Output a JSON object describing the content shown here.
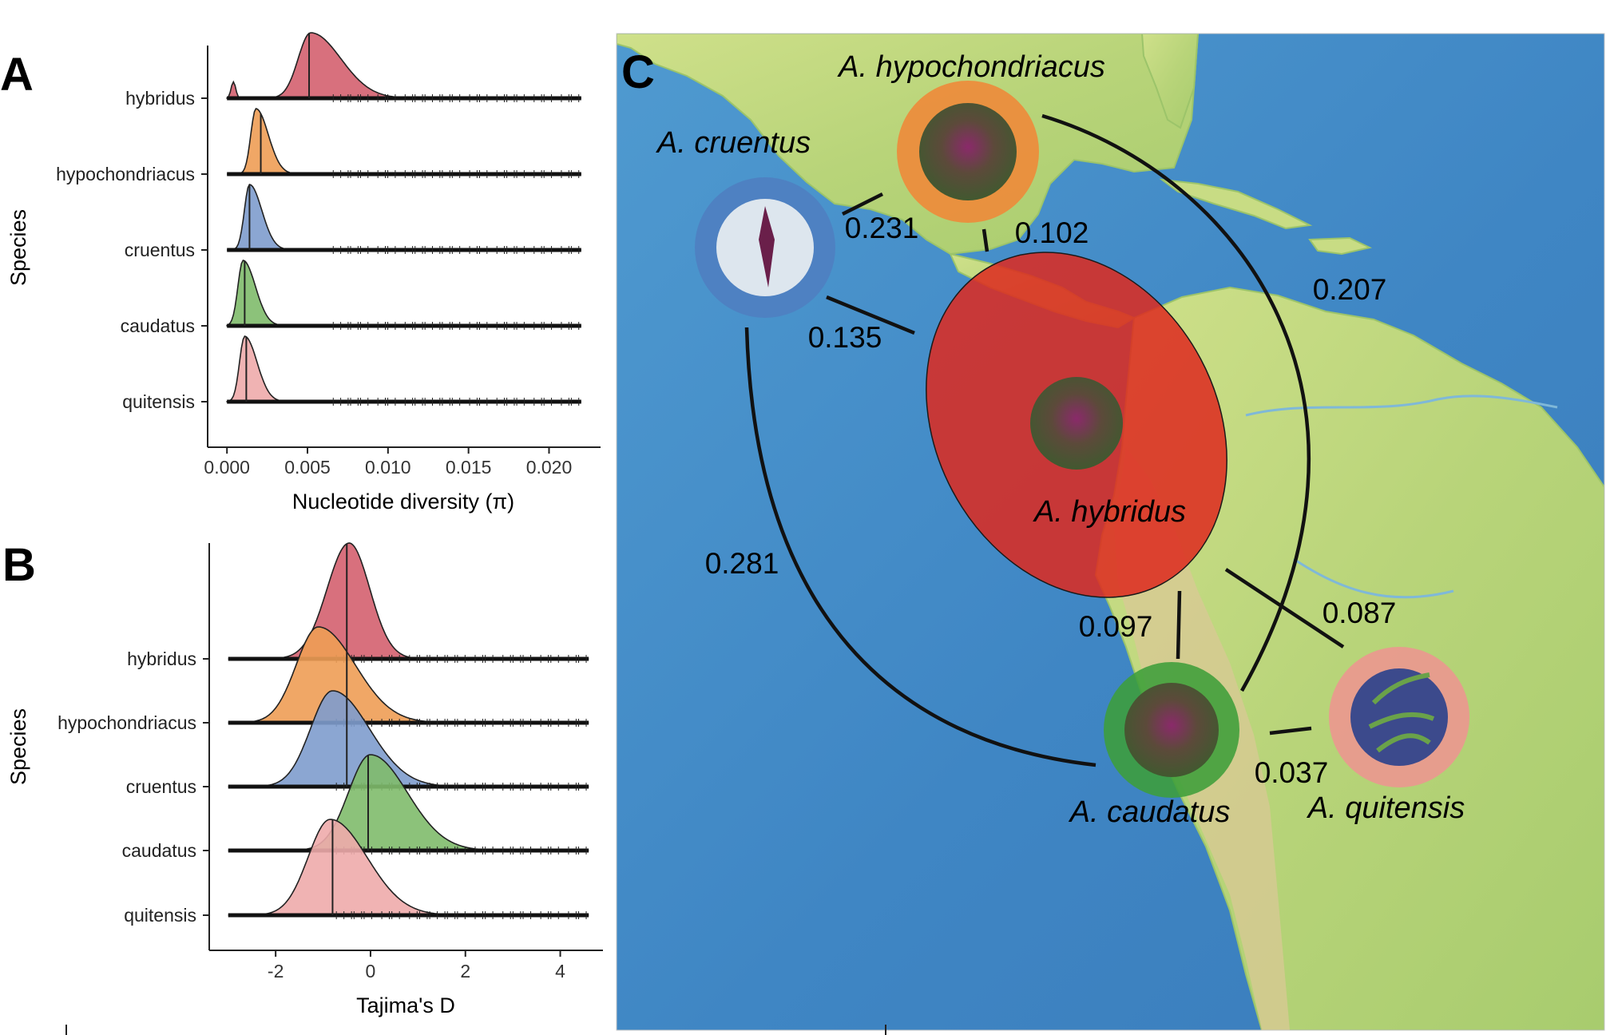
{
  "panels": {
    "a": {
      "letter": "A"
    },
    "b": {
      "letter": "B"
    },
    "c": {
      "letter": "C"
    }
  },
  "chart_data": [
    {
      "type": "ridgeline",
      "panel": "A",
      "xlabel": "Nucleotide diversity (π)",
      "ylabel": "Species",
      "xlim": [
        -0.0012,
        0.0232
      ],
      "xticks": [
        0.0,
        0.005,
        0.01,
        0.015,
        0.02
      ],
      "xtick_labels": [
        "0.000",
        "0.005",
        "0.010",
        "0.015",
        "0.020"
      ],
      "grid": false,
      "series": [
        {
          "name": "hybridus",
          "color": "#d4606f",
          "median": 0.0051,
          "peak_x": 0.0052,
          "data_range": [
            0.0,
            0.022
          ]
        },
        {
          "name": "hypochondriacus",
          "color": "#ee9d55",
          "median": 0.0021,
          "peak_x": 0.0018,
          "data_range": [
            0.0,
            0.022
          ]
        },
        {
          "name": "cruentus",
          "color": "#7e9ccd",
          "median": 0.0014,
          "peak_x": 0.0014,
          "data_range": [
            0.0,
            0.022
          ]
        },
        {
          "name": "caudatus",
          "color": "#80bb6c",
          "median": 0.0011,
          "peak_x": 0.001,
          "data_range": [
            0.0,
            0.022
          ]
        },
        {
          "name": "quitensis",
          "color": "#eeabab",
          "median": 0.0012,
          "peak_x": 0.0011,
          "data_range": [
            0.0,
            0.022
          ]
        }
      ]
    },
    {
      "type": "ridgeline",
      "panel": "B",
      "xlabel": "Tajima's D",
      "ylabel": "Species",
      "xlim": [
        -3.4,
        4.9
      ],
      "xticks": [
        -2,
        0,
        2,
        4
      ],
      "xtick_labels": [
        "-2",
        "0",
        "2",
        "4"
      ],
      "grid": false,
      "series": [
        {
          "name": "hybridus",
          "color": "#d4606f",
          "median": -0.5,
          "peak_x": -0.45,
          "data_range": [
            -3.0,
            4.6
          ]
        },
        {
          "name": "hypochondriacus",
          "color": "#ee9d55",
          "median": -0.5,
          "peak_x": -1.1,
          "data_range": [
            -3.0,
            4.6
          ]
        },
        {
          "name": "cruentus",
          "color": "#7e9ccd",
          "median": -0.5,
          "peak_x": -0.8,
          "data_range": [
            -3.0,
            4.6
          ]
        },
        {
          "name": "caudatus",
          "color": "#80bb6c",
          "median": -0.05,
          "peak_x": 0.0,
          "data_range": [
            -3.0,
            4.6
          ]
        },
        {
          "name": "quitensis",
          "color": "#eeabab",
          "median": -0.8,
          "peak_x": -0.85,
          "data_range": [
            -3.0,
            4.6
          ]
        }
      ]
    }
  ],
  "map": {
    "species": [
      {
        "name": "A. hypochondriacus",
        "ring_color": "#ee8a3a",
        "photo": "flower-photo"
      },
      {
        "name": "A. cruentus",
        "ring_color": "#4f7ec0",
        "photo": "flower-photo"
      },
      {
        "name": "A. hybridus",
        "ring_color": "#dd2a20",
        "photo": "flower-photo"
      },
      {
        "name": "A. caudatus",
        "ring_color": "#3d9e3a",
        "photo": "flower-photo"
      },
      {
        "name": "A. quitensis",
        "ring_color": "#e99a8e",
        "photo": "flower-photo"
      }
    ],
    "connections": [
      {
        "from": "A. cruentus",
        "to": "A. hypochondriacus",
        "value": "0.231"
      },
      {
        "from": "A. hypochondriacus",
        "to": "A. hybridus",
        "value": "0.102"
      },
      {
        "from": "A. hypochondriacus",
        "to": "A. caudatus",
        "value": "0.207"
      },
      {
        "from": "A. cruentus",
        "to": "A. hybridus",
        "value": "0.135"
      },
      {
        "from": "A. cruentus",
        "to": "A. caudatus",
        "value": "0.281"
      },
      {
        "from": "A. hybridus",
        "to": "A. caudatus",
        "value": "0.097"
      },
      {
        "from": "A. hybridus",
        "to": "A. quitensis",
        "value": "0.087"
      },
      {
        "from": "A. caudatus",
        "to": "A. quitensis",
        "value": "0.037"
      }
    ]
  }
}
